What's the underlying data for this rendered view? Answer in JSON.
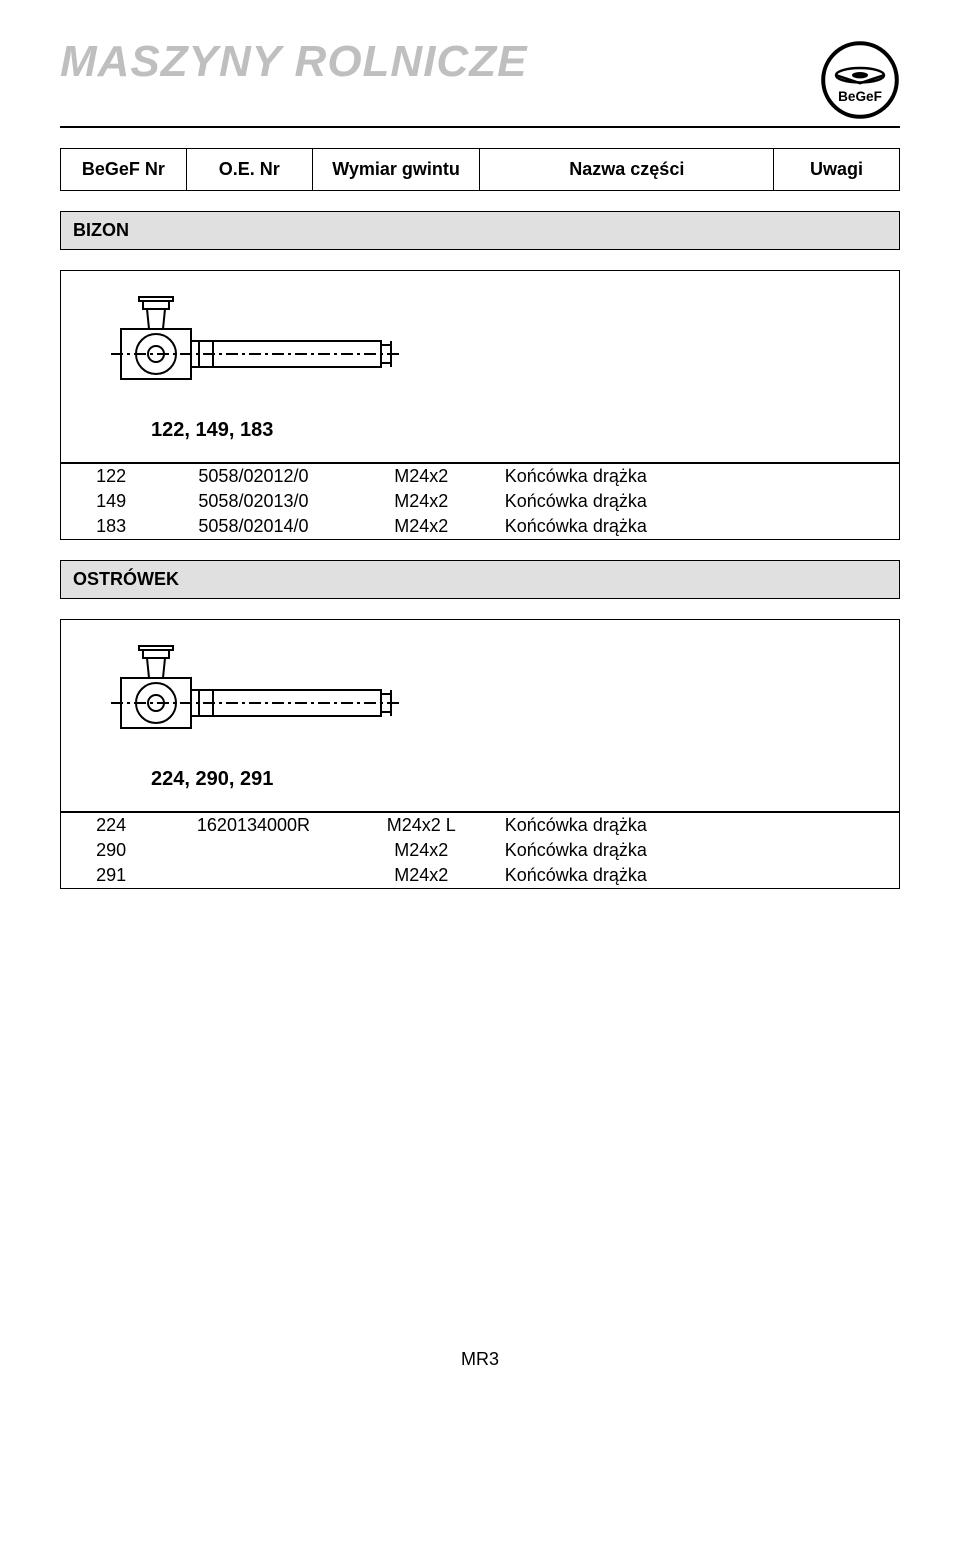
{
  "page_title": "MASZYNY ROLNICZE",
  "logo_text": "BeGeF",
  "column_headers": {
    "c1": "BeGeF Nr",
    "c2": "O.E. Nr",
    "c3": "Wymiar gwintu",
    "c4": "Nazwa części",
    "c5": "Uwagi"
  },
  "sections": [
    {
      "band_label": "BIZON",
      "variant_label": "122, 149, 183",
      "rows": [
        {
          "c1": "122",
          "c2": "5058/02012/0",
          "c3": "M24x2",
          "c4": "Końcówka drążka",
          "c5": ""
        },
        {
          "c1": "149",
          "c2": "5058/02013/0",
          "c3": "M24x2",
          "c4": "Końcówka drążka",
          "c5": ""
        },
        {
          "c1": "183",
          "c2": "5058/02014/0",
          "c3": "M24x2",
          "c4": "Końcówka drążka",
          "c5": ""
        }
      ]
    },
    {
      "band_label": "OSTRÓWEK",
      "variant_label": "224, 290, 291",
      "rows": [
        {
          "c1": "224",
          "c2": "1620134000R",
          "c3": "M24x2 L",
          "c4": "Końcówka drążka",
          "c5": ""
        },
        {
          "c1": "290",
          "c2": "",
          "c3": "M24x2",
          "c4": "Końcówka drążka",
          "c5": ""
        },
        {
          "c1": "291",
          "c2": "",
          "c3": "M24x2",
          "c4": "Końcówka drążka",
          "c5": ""
        }
      ]
    }
  ],
  "footer": "MR3",
  "style": {
    "page_bg": "#ffffff",
    "title_color": "#bfbfbf",
    "title_fontsize": 44,
    "band_bg": "#e0e0e0",
    "border_color": "#000000",
    "body_fontsize": 18,
    "diagram_stroke": "#000000",
    "diagram_fill": "#ffffff"
  }
}
